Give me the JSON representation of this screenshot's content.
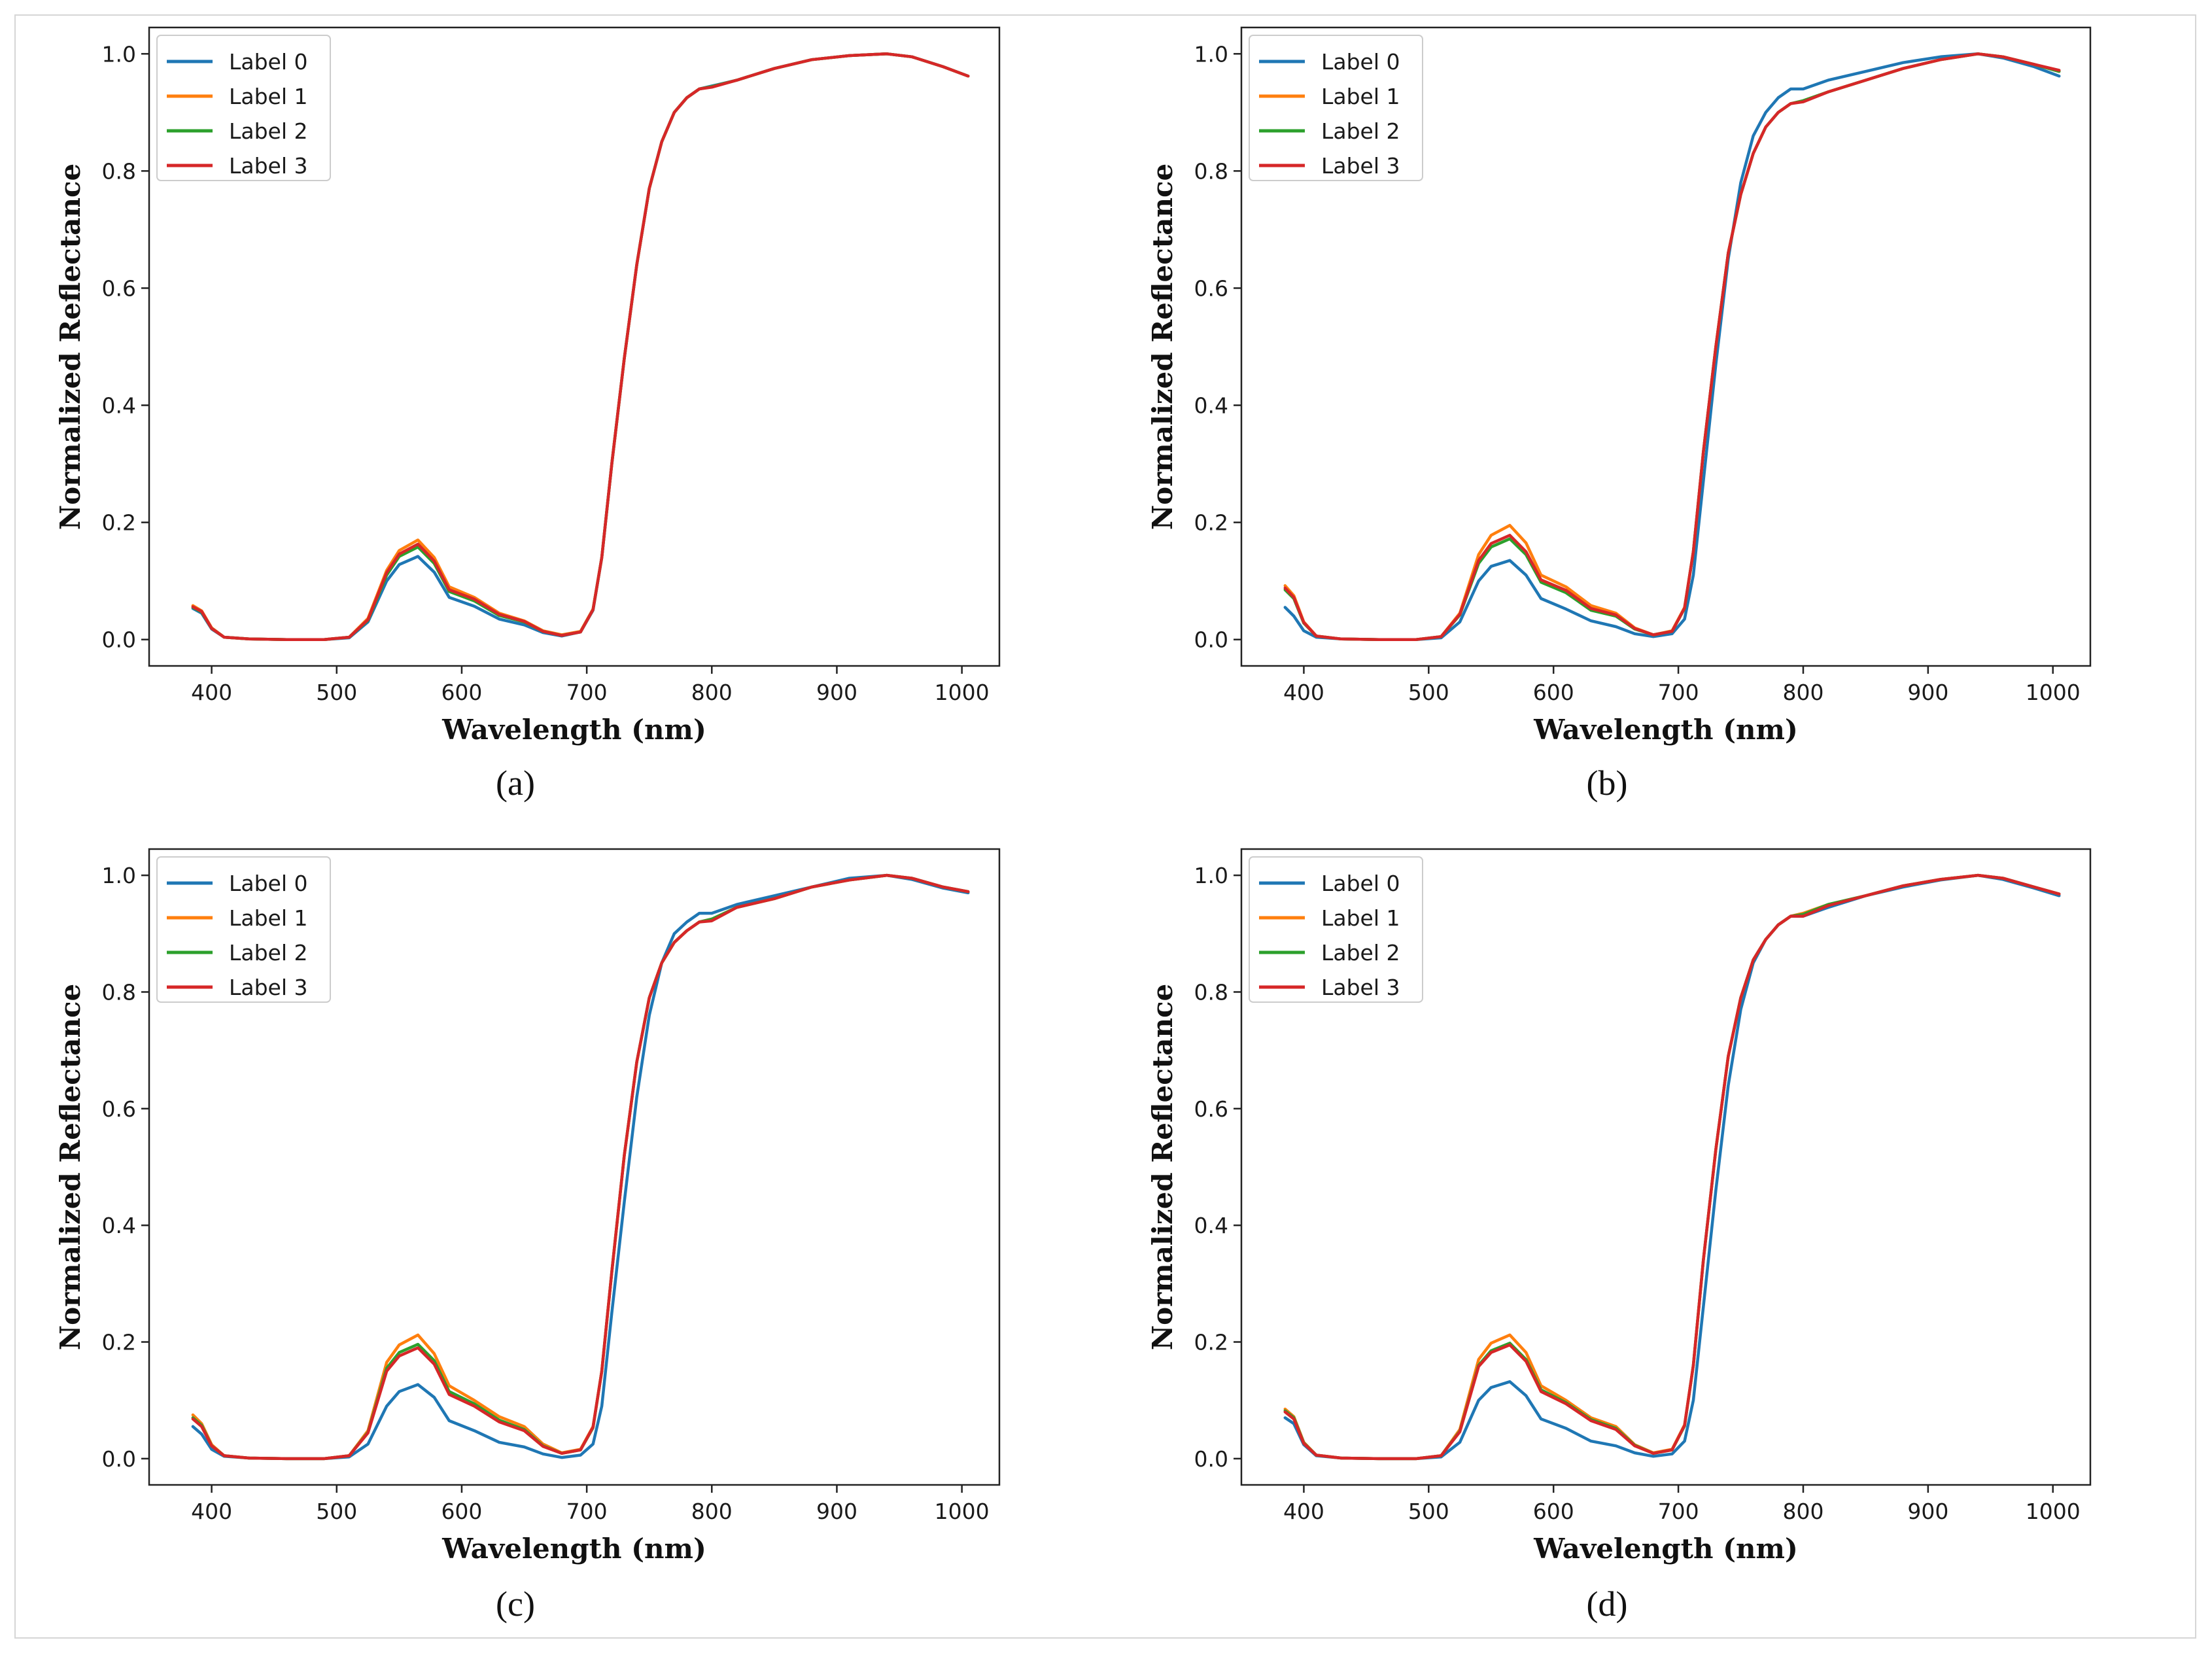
{
  "colors": {
    "label_0": "#1f77b4",
    "label_1": "#ff7f0e",
    "label_2": "#2ca02c",
    "label_3": "#d62728"
  },
  "chart_data": [
    {
      "type": "line",
      "caption": "(a)",
      "xlabel": "Wavelength (nm)",
      "ylabel": "Normalized Reflectance",
      "xlim": [
        350,
        1030
      ],
      "ylim": [
        -0.045,
        1.045
      ],
      "xticks": [
        400,
        500,
        600,
        700,
        800,
        900,
        1000
      ],
      "yticks": [
        "0.0",
        "0.2",
        "0.4",
        "0.6",
        "0.8",
        "1.0"
      ],
      "legend_position": "top-left",
      "x": [
        385,
        392,
        400,
        410,
        430,
        460,
        490,
        510,
        525,
        540,
        550,
        565,
        578,
        590,
        610,
        630,
        650,
        665,
        680,
        695,
        705,
        712,
        720,
        730,
        740,
        750,
        760,
        770,
        780,
        790,
        800,
        820,
        850,
        880,
        910,
        940,
        960,
        985,
        1005
      ],
      "series": [
        {
          "name": "Label 0",
          "values": [
            0.053,
            0.045,
            0.018,
            0.004,
            0.001,
            0.0,
            0.0,
            0.003,
            0.03,
            0.1,
            0.128,
            0.142,
            0.115,
            0.072,
            0.057,
            0.035,
            0.025,
            0.012,
            0.006,
            0.013,
            0.05,
            0.14,
            0.3,
            0.48,
            0.64,
            0.77,
            0.85,
            0.9,
            0.925,
            0.94,
            0.945,
            0.955,
            0.975,
            0.99,
            0.997,
            1.0,
            0.995,
            0.978,
            0.962
          ]
        },
        {
          "name": "Label 1",
          "values": [
            0.058,
            0.049,
            0.02,
            0.004,
            0.001,
            0.0,
            0.0,
            0.004,
            0.036,
            0.118,
            0.152,
            0.17,
            0.14,
            0.09,
            0.072,
            0.045,
            0.032,
            0.015,
            0.008,
            0.014,
            0.052,
            0.14,
            0.3,
            0.48,
            0.64,
            0.77,
            0.85,
            0.9,
            0.925,
            0.94,
            0.944,
            0.955,
            0.975,
            0.99,
            0.997,
            1.0,
            0.995,
            0.978,
            0.962
          ]
        },
        {
          "name": "Label 2",
          "values": [
            0.055,
            0.047,
            0.019,
            0.004,
            0.001,
            0.0,
            0.0,
            0.004,
            0.033,
            0.11,
            0.142,
            0.158,
            0.13,
            0.082,
            0.066,
            0.041,
            0.03,
            0.014,
            0.007,
            0.013,
            0.051,
            0.14,
            0.3,
            0.48,
            0.64,
            0.77,
            0.85,
            0.9,
            0.925,
            0.94,
            0.944,
            0.955,
            0.975,
            0.99,
            0.997,
            1.0,
            0.995,
            0.978,
            0.962
          ]
        },
        {
          "name": "Label 3",
          "values": [
            0.056,
            0.048,
            0.019,
            0.004,
            0.001,
            0.0,
            0.0,
            0.004,
            0.034,
            0.114,
            0.146,
            0.163,
            0.134,
            0.085,
            0.069,
            0.043,
            0.031,
            0.014,
            0.007,
            0.013,
            0.051,
            0.14,
            0.3,
            0.48,
            0.64,
            0.77,
            0.85,
            0.9,
            0.925,
            0.94,
            0.943,
            0.955,
            0.975,
            0.99,
            0.997,
            1.0,
            0.995,
            0.978,
            0.962
          ]
        }
      ]
    },
    {
      "type": "line",
      "caption": "(b)",
      "xlabel": "Wavelength (nm)",
      "ylabel": "Normalized Reflectance",
      "xlim": [
        350,
        1030
      ],
      "ylim": [
        -0.045,
        1.045
      ],
      "xticks": [
        400,
        500,
        600,
        700,
        800,
        900,
        1000
      ],
      "yticks": [
        "0.0",
        "0.2",
        "0.4",
        "0.6",
        "0.8",
        "1.0"
      ],
      "legend_position": "top-left",
      "x": [
        385,
        392,
        400,
        410,
        430,
        460,
        490,
        510,
        525,
        540,
        550,
        565,
        578,
        590,
        610,
        630,
        650,
        665,
        680,
        695,
        705,
        712,
        720,
        730,
        740,
        750,
        760,
        770,
        780,
        790,
        800,
        820,
        850,
        880,
        910,
        940,
        960,
        985,
        1005
      ],
      "series": [
        {
          "name": "Label 0",
          "values": [
            0.055,
            0.04,
            0.015,
            0.004,
            0.001,
            0.0,
            0.0,
            0.003,
            0.03,
            0.1,
            0.125,
            0.135,
            0.11,
            0.07,
            0.052,
            0.032,
            0.022,
            0.01,
            0.005,
            0.01,
            0.035,
            0.11,
            0.27,
            0.47,
            0.65,
            0.78,
            0.86,
            0.9,
            0.925,
            0.94,
            0.94,
            0.955,
            0.97,
            0.985,
            0.995,
            1.0,
            0.993,
            0.978,
            0.962
          ]
        },
        {
          "name": "Label 1",
          "values": [
            0.092,
            0.075,
            0.03,
            0.006,
            0.001,
            0.0,
            0.0,
            0.005,
            0.045,
            0.145,
            0.178,
            0.195,
            0.165,
            0.11,
            0.09,
            0.058,
            0.045,
            0.02,
            0.008,
            0.015,
            0.055,
            0.15,
            0.32,
            0.5,
            0.66,
            0.76,
            0.83,
            0.875,
            0.9,
            0.915,
            0.92,
            0.935,
            0.955,
            0.975,
            0.99,
            1.0,
            0.995,
            0.982,
            0.97
          ]
        },
        {
          "name": "Label 2",
          "values": [
            0.085,
            0.07,
            0.028,
            0.006,
            0.001,
            0.0,
            0.0,
            0.005,
            0.042,
            0.13,
            0.158,
            0.172,
            0.145,
            0.098,
            0.08,
            0.05,
            0.04,
            0.018,
            0.008,
            0.014,
            0.053,
            0.15,
            0.32,
            0.5,
            0.66,
            0.76,
            0.83,
            0.875,
            0.9,
            0.915,
            0.92,
            0.935,
            0.955,
            0.975,
            0.99,
            1.0,
            0.995,
            0.982,
            0.97
          ]
        },
        {
          "name": "Label 3",
          "values": [
            0.088,
            0.072,
            0.029,
            0.006,
            0.001,
            0.0,
            0.0,
            0.005,
            0.043,
            0.135,
            0.164,
            0.178,
            0.15,
            0.102,
            0.084,
            0.053,
            0.042,
            0.019,
            0.008,
            0.014,
            0.054,
            0.15,
            0.32,
            0.5,
            0.66,
            0.76,
            0.83,
            0.875,
            0.9,
            0.915,
            0.918,
            0.935,
            0.955,
            0.975,
            0.99,
            1.0,
            0.995,
            0.982,
            0.972
          ]
        }
      ]
    },
    {
      "type": "line",
      "caption": "(c)",
      "xlabel": "Wavelength (nm)",
      "ylabel": "Normalized Reflectance",
      "xlim": [
        350,
        1030
      ],
      "ylim": [
        -0.045,
        1.045
      ],
      "xticks": [
        400,
        500,
        600,
        700,
        800,
        900,
        1000
      ],
      "yticks": [
        "0.0",
        "0.2",
        "0.4",
        "0.6",
        "0.8",
        "1.0"
      ],
      "legend_position": "top-left",
      "x": [
        385,
        392,
        400,
        410,
        430,
        460,
        490,
        510,
        525,
        540,
        550,
        565,
        578,
        590,
        610,
        630,
        650,
        665,
        680,
        695,
        705,
        712,
        720,
        730,
        740,
        750,
        760,
        770,
        780,
        790,
        800,
        820,
        850,
        880,
        910,
        940,
        960,
        985,
        1005
      ],
      "series": [
        {
          "name": "Label 0",
          "values": [
            0.055,
            0.042,
            0.016,
            0.004,
            0.001,
            0.0,
            0.0,
            0.003,
            0.025,
            0.09,
            0.115,
            0.127,
            0.105,
            0.065,
            0.048,
            0.028,
            0.02,
            0.008,
            0.002,
            0.006,
            0.025,
            0.09,
            0.25,
            0.44,
            0.62,
            0.76,
            0.85,
            0.9,
            0.92,
            0.935,
            0.935,
            0.95,
            0.965,
            0.98,
            0.995,
            1.0,
            0.993,
            0.978,
            0.97
          ]
        },
        {
          "name": "Label 1",
          "values": [
            0.075,
            0.06,
            0.024,
            0.005,
            0.001,
            0.0,
            0.0,
            0.005,
            0.048,
            0.165,
            0.195,
            0.212,
            0.18,
            0.125,
            0.1,
            0.072,
            0.055,
            0.025,
            0.01,
            0.016,
            0.055,
            0.15,
            0.32,
            0.52,
            0.68,
            0.79,
            0.85,
            0.885,
            0.905,
            0.92,
            0.925,
            0.945,
            0.96,
            0.98,
            0.992,
            1.0,
            0.995,
            0.98,
            0.972
          ]
        },
        {
          "name": "Label 2",
          "values": [
            0.07,
            0.057,
            0.022,
            0.005,
            0.001,
            0.0,
            0.0,
            0.005,
            0.045,
            0.155,
            0.182,
            0.196,
            0.168,
            0.115,
            0.094,
            0.066,
            0.05,
            0.022,
            0.009,
            0.015,
            0.053,
            0.15,
            0.32,
            0.52,
            0.68,
            0.79,
            0.85,
            0.885,
            0.905,
            0.92,
            0.925,
            0.945,
            0.96,
            0.98,
            0.992,
            1.0,
            0.995,
            0.98,
            0.972
          ]
        },
        {
          "name": "Label 3",
          "values": [
            0.068,
            0.055,
            0.022,
            0.005,
            0.001,
            0.0,
            0.0,
            0.005,
            0.044,
            0.15,
            0.176,
            0.19,
            0.162,
            0.11,
            0.09,
            0.063,
            0.048,
            0.021,
            0.009,
            0.015,
            0.054,
            0.15,
            0.32,
            0.52,
            0.68,
            0.79,
            0.85,
            0.885,
            0.905,
            0.92,
            0.922,
            0.945,
            0.96,
            0.98,
            0.992,
            1.0,
            0.995,
            0.98,
            0.972
          ]
        }
      ]
    },
    {
      "type": "line",
      "caption": "(d)",
      "xlabel": "Wavelength (nm)",
      "ylabel": "Normalized Reflectance",
      "xlim": [
        350,
        1030
      ],
      "ylim": [
        -0.045,
        1.045
      ],
      "xticks": [
        400,
        500,
        600,
        700,
        800,
        900,
        1000
      ],
      "yticks": [
        "0.0",
        "0.2",
        "0.4",
        "0.6",
        "0.8",
        "1.0"
      ],
      "legend_position": "top-left",
      "x": [
        385,
        392,
        400,
        410,
        430,
        460,
        490,
        510,
        525,
        540,
        550,
        565,
        578,
        590,
        610,
        630,
        650,
        665,
        680,
        695,
        705,
        712,
        720,
        730,
        740,
        750,
        760,
        770,
        780,
        790,
        800,
        820,
        850,
        880,
        910,
        940,
        960,
        985,
        1005
      ],
      "series": [
        {
          "name": "Label 0",
          "values": [
            0.07,
            0.06,
            0.024,
            0.005,
            0.001,
            0.0,
            0.0,
            0.003,
            0.028,
            0.1,
            0.122,
            0.132,
            0.108,
            0.068,
            0.052,
            0.03,
            0.022,
            0.01,
            0.004,
            0.008,
            0.03,
            0.1,
            0.26,
            0.46,
            0.64,
            0.77,
            0.85,
            0.89,
            0.915,
            0.93,
            0.93,
            0.945,
            0.965,
            0.98,
            0.992,
            1.0,
            0.993,
            0.978,
            0.965
          ]
        },
        {
          "name": "Label 1",
          "values": [
            0.085,
            0.072,
            0.028,
            0.006,
            0.001,
            0.0,
            0.0,
            0.005,
            0.05,
            0.17,
            0.198,
            0.212,
            0.182,
            0.125,
            0.1,
            0.07,
            0.055,
            0.024,
            0.01,
            0.016,
            0.058,
            0.16,
            0.34,
            0.53,
            0.69,
            0.79,
            0.855,
            0.89,
            0.915,
            0.93,
            0.935,
            0.95,
            0.965,
            0.982,
            0.993,
            1.0,
            0.995,
            0.98,
            0.968
          ]
        },
        {
          "name": "Label 2",
          "values": [
            0.082,
            0.07,
            0.027,
            0.006,
            0.001,
            0.0,
            0.0,
            0.005,
            0.047,
            0.16,
            0.185,
            0.198,
            0.17,
            0.118,
            0.096,
            0.067,
            0.052,
            0.023,
            0.009,
            0.015,
            0.056,
            0.16,
            0.34,
            0.53,
            0.69,
            0.79,
            0.855,
            0.89,
            0.915,
            0.93,
            0.933,
            0.95,
            0.965,
            0.982,
            0.993,
            1.0,
            0.995,
            0.98,
            0.968
          ]
        },
        {
          "name": "Label 3",
          "values": [
            0.08,
            0.068,
            0.026,
            0.006,
            0.001,
            0.0,
            0.0,
            0.005,
            0.046,
            0.158,
            0.182,
            0.195,
            0.167,
            0.115,
            0.094,
            0.065,
            0.05,
            0.022,
            0.009,
            0.015,
            0.057,
            0.16,
            0.34,
            0.53,
            0.69,
            0.79,
            0.855,
            0.89,
            0.915,
            0.93,
            0.93,
            0.948,
            0.965,
            0.982,
            0.993,
            1.0,
            0.995,
            0.98,
            0.968
          ]
        }
      ]
    }
  ]
}
